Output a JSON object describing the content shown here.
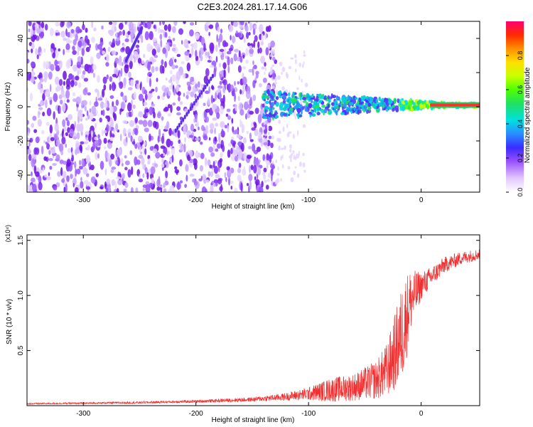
{
  "title": "C2E3.2024.281.17.14.G06",
  "chart_data": [
    {
      "type": "heatmap",
      "xlabel": "Height of straight line (km)",
      "ylabel": "Frequency (Hz)",
      "xlim": [
        -350,
        52
      ],
      "ylim": [
        -50,
        50
      ],
      "xticks": [
        -300,
        -200,
        -100,
        0
      ],
      "xtick_labels": [
        "-300",
        "-200",
        "-100",
        "0"
      ],
      "yticks": [
        -40,
        -20,
        0,
        20,
        40
      ],
      "ytick_labels": [
        "-40",
        "-20",
        "0",
        "20",
        "40"
      ],
      "colorbar": {
        "label": "Normalized spectral amplitude",
        "range": [
          0,
          1
        ],
        "ticks": [
          0.0,
          0.2,
          0.4,
          0.6,
          0.8
        ],
        "tick_labels": [
          "0.0",
          "0.2",
          "0.4",
          "0.6",
          "0.8"
        ],
        "colormap": "rainbow"
      },
      "features": {
        "noise_region_x": [
          -350,
          -135
        ],
        "signal_band": {
          "x": [
            -140,
            52
          ],
          "center_hz": 1,
          "halfwidth_start_hz": 8,
          "halfwidth_end_hz": 1
        },
        "diagonal_streaks": [
          {
            "x0": -262,
            "y0": 27,
            "x1": -248,
            "y1": 46
          },
          {
            "x0": -218,
            "y0": -14,
            "x1": -185,
            "y1": 18
          }
        ]
      },
      "grid": false
    },
    {
      "type": "line",
      "xlabel": "Height of straight line (km)",
      "ylabel": "SNR (10 * v/v)",
      "y_multiplier": "(x10⁴)",
      "xlim": [
        -350,
        52
      ],
      "ylim": [
        0,
        15500
      ],
      "xticks": [
        -300,
        -200,
        -100,
        0
      ],
      "xtick_labels": [
        "-300",
        "-200",
        "-100",
        "0"
      ],
      "yticks": [
        5000,
        10000,
        15000
      ],
      "ytick_labels": [
        "0.5",
        "1.0",
        "1.5"
      ],
      "color": "#f03030",
      "envelope": {
        "x": [
          -350,
          -300,
          -250,
          -200,
          -150,
          -120,
          -100,
          -80,
          -60,
          -40,
          -30,
          -25,
          -20,
          -15,
          -10,
          0,
          10,
          20,
          35,
          52
        ],
        "baseline": [
          150,
          200,
          250,
          350,
          500,
          700,
          900,
          1100,
          1300,
          1800,
          2500,
          3500,
          4500,
          6000,
          8500,
          10500,
          11500,
          12500,
          13200,
          13600
        ],
        "amplitude": [
          150,
          150,
          200,
          250,
          400,
          700,
          1200,
          2200,
          2500,
          3500,
          5000,
          6500,
          8000,
          9000,
          6000,
          2500,
          1800,
          1500,
          1200,
          1000
        ]
      },
      "grid": false
    }
  ]
}
